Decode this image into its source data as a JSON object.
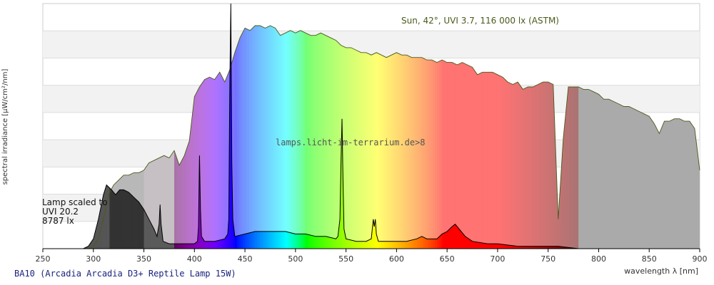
{
  "footer_title": "BA10 (Arcadia Arcadia D3+ Reptile Lamp 15W)",
  "watermark": "lamps.licht-im-terrarium.de>8",
  "sun_label": "Sun, 42°, UVI 3.7, 116 000 lx (ASTM)",
  "lamp_label": [
    "Lamp scaled to",
    "UVI 20.2",
    "8787 lx"
  ],
  "chart_data": {
    "type": "line",
    "xlabel": "wavelength λ [nm]",
    "ylabel": "spectral irradiance [µW/cm²/nm]",
    "xlim": [
      250,
      900
    ],
    "x_ticks": [
      250,
      300,
      350,
      400,
      450,
      500,
      550,
      600,
      650,
      700,
      750,
      800,
      850,
      900
    ],
    "y_ticks_shown": false,
    "y_max_relative": 1.0,
    "series": [
      {
        "name": "Sun, 42°, UVI 3.7, 116 000 lx (ASTM)",
        "color": "#4a5a1c",
        "note": "relative scale, 0 to 1",
        "points": [
          [
            295,
            0
          ],
          [
            300,
            0.01
          ],
          [
            305,
            0.04
          ],
          [
            310,
            0.12
          ],
          [
            315,
            0.22
          ],
          [
            320,
            0.26
          ],
          [
            325,
            0.28
          ],
          [
            330,
            0.3
          ],
          [
            335,
            0.3
          ],
          [
            340,
            0.31
          ],
          [
            345,
            0.31
          ],
          [
            350,
            0.32
          ],
          [
            355,
            0.35
          ],
          [
            360,
            0.36
          ],
          [
            365,
            0.37
          ],
          [
            370,
            0.38
          ],
          [
            375,
            0.37
          ],
          [
            380,
            0.4
          ],
          [
            385,
            0.34
          ],
          [
            390,
            0.38
          ],
          [
            395,
            0.44
          ],
          [
            400,
            0.62
          ],
          [
            405,
            0.66
          ],
          [
            410,
            0.69
          ],
          [
            415,
            0.7
          ],
          [
            420,
            0.69
          ],
          [
            425,
            0.72
          ],
          [
            430,
            0.68
          ],
          [
            435,
            0.73
          ],
          [
            440,
            0.8
          ],
          [
            445,
            0.86
          ],
          [
            450,
            0.9
          ],
          [
            455,
            0.89
          ],
          [
            460,
            0.91
          ],
          [
            465,
            0.91
          ],
          [
            470,
            0.9
          ],
          [
            475,
            0.91
          ],
          [
            480,
            0.9
          ],
          [
            485,
            0.87
          ],
          [
            490,
            0.88
          ],
          [
            495,
            0.89
          ],
          [
            500,
            0.88
          ],
          [
            505,
            0.89
          ],
          [
            510,
            0.88
          ],
          [
            515,
            0.87
          ],
          [
            520,
            0.87
          ],
          [
            525,
            0.88
          ],
          [
            530,
            0.87
          ],
          [
            535,
            0.86
          ],
          [
            540,
            0.85
          ],
          [
            545,
            0.83
          ],
          [
            550,
            0.82
          ],
          [
            555,
            0.82
          ],
          [
            560,
            0.81
          ],
          [
            565,
            0.8
          ],
          [
            570,
            0.8
          ],
          [
            575,
            0.79
          ],
          [
            580,
            0.8
          ],
          [
            585,
            0.79
          ],
          [
            590,
            0.78
          ],
          [
            595,
            0.79
          ],
          [
            600,
            0.8
          ],
          [
            605,
            0.79
          ],
          [
            610,
            0.79
          ],
          [
            615,
            0.78
          ],
          [
            620,
            0.78
          ],
          [
            625,
            0.78
          ],
          [
            630,
            0.77
          ],
          [
            635,
            0.77
          ],
          [
            640,
            0.76
          ],
          [
            645,
            0.77
          ],
          [
            650,
            0.76
          ],
          [
            655,
            0.76
          ],
          [
            660,
            0.75
          ],
          [
            665,
            0.76
          ],
          [
            670,
            0.75
          ],
          [
            675,
            0.74
          ],
          [
            680,
            0.71
          ],
          [
            685,
            0.72
          ],
          [
            690,
            0.72
          ],
          [
            695,
            0.72
          ],
          [
            700,
            0.71
          ],
          [
            705,
            0.7
          ],
          [
            710,
            0.68
          ],
          [
            715,
            0.67
          ],
          [
            720,
            0.68
          ],
          [
            725,
            0.65
          ],
          [
            730,
            0.66
          ],
          [
            735,
            0.66
          ],
          [
            740,
            0.67
          ],
          [
            745,
            0.68
          ],
          [
            750,
            0.68
          ],
          [
            755,
            0.67
          ],
          [
            760,
            0.12
          ],
          [
            765,
            0.45
          ],
          [
            770,
            0.66
          ],
          [
            775,
            0.66
          ],
          [
            780,
            0.66
          ],
          [
            785,
            0.65
          ],
          [
            790,
            0.65
          ],
          [
            795,
            0.64
          ],
          [
            800,
            0.63
          ],
          [
            805,
            0.61
          ],
          [
            810,
            0.61
          ],
          [
            815,
            0.6
          ],
          [
            820,
            0.59
          ],
          [
            825,
            0.58
          ],
          [
            830,
            0.58
          ],
          [
            835,
            0.57
          ],
          [
            840,
            0.56
          ],
          [
            845,
            0.55
          ],
          [
            850,
            0.54
          ],
          [
            855,
            0.51
          ],
          [
            860,
            0.47
          ],
          [
            865,
            0.52
          ],
          [
            870,
            0.52
          ],
          [
            875,
            0.53
          ],
          [
            880,
            0.53
          ],
          [
            885,
            0.52
          ],
          [
            890,
            0.52
          ],
          [
            895,
            0.49
          ],
          [
            900,
            0.32
          ]
        ]
      },
      {
        "name": "Lamp scaled to UVI 20.2",
        "color": "#000000",
        "note": "relative scale, 0 to 1",
        "points": [
          [
            250,
            0
          ],
          [
            290,
            0
          ],
          [
            295,
            0.01
          ],
          [
            300,
            0.04
          ],
          [
            305,
            0.12
          ],
          [
            310,
            0.22
          ],
          [
            313,
            0.26
          ],
          [
            318,
            0.24
          ],
          [
            322,
            0.22
          ],
          [
            326,
            0.24
          ],
          [
            330,
            0.24
          ],
          [
            335,
            0.23
          ],
          [
            340,
            0.21
          ],
          [
            345,
            0.19
          ],
          [
            350,
            0.16
          ],
          [
            355,
            0.12
          ],
          [
            360,
            0.08
          ],
          [
            363,
            0.05
          ],
          [
            365,
            0.1
          ],
          [
            366,
            0.18
          ],
          [
            367,
            0.1
          ],
          [
            369,
            0.03
          ],
          [
            375,
            0.02
          ],
          [
            380,
            0.02
          ],
          [
            395,
            0.02
          ],
          [
            400,
            0.02
          ],
          [
            403,
            0.03
          ],
          [
            404,
            0.09
          ],
          [
            405,
            0.38
          ],
          [
            406,
            0.16
          ],
          [
            407,
            0.05
          ],
          [
            410,
            0.03
          ],
          [
            420,
            0.03
          ],
          [
            430,
            0.04
          ],
          [
            433,
            0.06
          ],
          [
            434,
            0.12
          ],
          [
            435,
            0.65
          ],
          [
            436,
            1.0
          ],
          [
            437,
            0.35
          ],
          [
            438,
            0.12
          ],
          [
            440,
            0.05
          ],
          [
            450,
            0.06
          ],
          [
            460,
            0.07
          ],
          [
            470,
            0.07
          ],
          [
            480,
            0.07
          ],
          [
            490,
            0.07
          ],
          [
            500,
            0.06
          ],
          [
            510,
            0.06
          ],
          [
            520,
            0.05
          ],
          [
            530,
            0.05
          ],
          [
            540,
            0.04
          ],
          [
            542,
            0.05
          ],
          [
            544,
            0.12
          ],
          [
            545,
            0.34
          ],
          [
            546,
            0.53
          ],
          [
            547,
            0.28
          ],
          [
            548,
            0.08
          ],
          [
            550,
            0.04
          ],
          [
            560,
            0.03
          ],
          [
            570,
            0.03
          ],
          [
            575,
            0.04
          ],
          [
            576,
            0.08
          ],
          [
            577,
            0.12
          ],
          [
            578,
            0.09
          ],
          [
            579,
            0.12
          ],
          [
            580,
            0.06
          ],
          [
            582,
            0.03
          ],
          [
            590,
            0.03
          ],
          [
            600,
            0.03
          ],
          [
            610,
            0.03
          ],
          [
            620,
            0.04
          ],
          [
            625,
            0.05
          ],
          [
            630,
            0.04
          ],
          [
            640,
            0.04
          ],
          [
            645,
            0.06
          ],
          [
            650,
            0.07
          ],
          [
            655,
            0.09
          ],
          [
            658,
            0.1
          ],
          [
            662,
            0.08
          ],
          [
            668,
            0.05
          ],
          [
            675,
            0.03
          ],
          [
            690,
            0.02
          ],
          [
            700,
            0.02
          ],
          [
            720,
            0.01
          ],
          [
            740,
            0.01
          ],
          [
            760,
            0.01
          ],
          [
            780,
            0.0
          ],
          [
            800,
            0.0
          ],
          [
            900,
            0.0
          ]
        ]
      }
    ],
    "background_bands": [
      {
        "from": 250,
        "to": 315,
        "label": "UVC/UVB",
        "color": "#ffffff"
      },
      {
        "from": 315,
        "to": 350,
        "label": "UVB",
        "color": "#333333"
      },
      {
        "from": 350,
        "to": 380,
        "label": "UVA",
        "color": "#666666"
      },
      {
        "from": 380,
        "to": 780,
        "label": "visible",
        "color": "spectrum"
      },
      {
        "from": 780,
        "to": 900,
        "label": "IR",
        "color": "#aaaaaa"
      }
    ]
  }
}
